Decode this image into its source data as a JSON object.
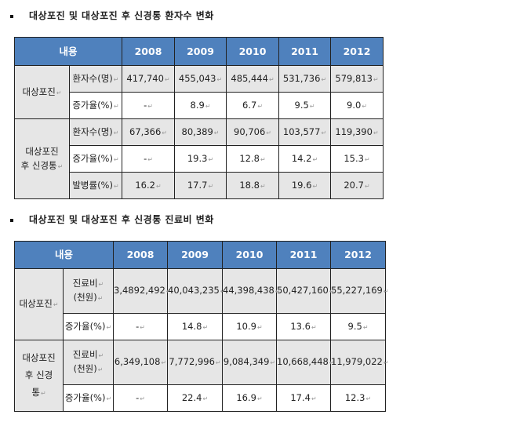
{
  "section1": {
    "title": "대상포진 및 대상포진 후 신경통 환자수 변화",
    "header": {
      "label": "내용",
      "years": [
        "2008",
        "2009",
        "2010",
        "2011",
        "2012"
      ]
    },
    "groups": [
      {
        "name": "대상포진",
        "rows": [
          {
            "label": "환자수(명)",
            "values": [
              "417,740",
              "455,043",
              "485,444",
              "531,736",
              "579,813"
            ]
          },
          {
            "label": "증가율(%)",
            "values": [
              "-",
              "8.9",
              "6.7",
              "9.5",
              "9.0"
            ]
          }
        ]
      },
      {
        "name_line1": "대상포진",
        "name_line2": "후 신경통",
        "rows": [
          {
            "label": "환자수(명)",
            "values": [
              "67,366",
              "80,389",
              "90,706",
              "103,577",
              "119,390"
            ]
          },
          {
            "label": "증가율(%)",
            "values": [
              "-",
              "19.3",
              "12.8",
              "14.2",
              "15.3"
            ]
          },
          {
            "label": "발병률(%)",
            "values": [
              "16.2",
              "17.7",
              "18.8",
              "19.6",
              "20.7"
            ]
          }
        ]
      }
    ]
  },
  "section2": {
    "title": "대상포진 및 대상포진 후 신경통 진료비 변화",
    "header": {
      "label": "내용",
      "years": [
        "2008",
        "2009",
        "2010",
        "2011",
        "2012"
      ]
    },
    "groups": [
      {
        "name": "대상포진",
        "rows": [
          {
            "label_line1": "진료비",
            "label_line2": "(천원)",
            "values": [
              "3,4892,492",
              "40,043,235",
              "44,398,438",
              "50,427,160",
              "55,227,169"
            ]
          },
          {
            "label": "증가율(%)",
            "values": [
              "-",
              "14.8",
              "10.9",
              "13.6",
              "9.5"
            ]
          }
        ]
      },
      {
        "name_line1": "대상포진",
        "name_line2": "후 신경",
        "name_line3": "통",
        "rows": [
          {
            "label_line1": "진료비",
            "label_line2": "(천원)",
            "values": [
              "6,349,108",
              "7,772,996",
              "9,084,349",
              "10,668,448",
              "11,979,022"
            ]
          },
          {
            "label": "증가율(%)",
            "values": [
              "-",
              "22.4",
              "16.9",
              "17.4",
              "12.3"
            ]
          }
        ]
      }
    ]
  }
}
